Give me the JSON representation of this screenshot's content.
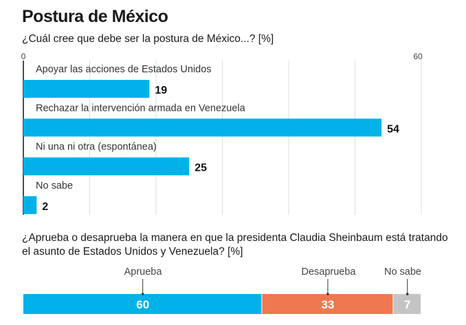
{
  "title": "Postura de México",
  "chart_data": [
    {
      "type": "bar",
      "orientation": "horizontal",
      "title": "¿Cuál cree que debe ser la postura de México...? [%]",
      "categories": [
        "Apoyar las acciones de Estados Unidos",
        "Rechazar la intervención armada en Venezuela",
        "Ni una ni otra (espontánea)",
        "No sabe"
      ],
      "values": [
        19,
        54,
        25,
        2
      ],
      "xlim": [
        0,
        60
      ],
      "tick_labels": [
        "0",
        "60"
      ],
      "gridlines": [
        10,
        20,
        30,
        40,
        50,
        60
      ],
      "grid": true,
      "color": "#00b2e8"
    },
    {
      "type": "bar",
      "stacked": true,
      "title": "¿Aprueba o desaprueba la manera en que la presidenta Claudia Sheinbaum está tratando el asunto de Estados Unidos y Venezuela? [%]",
      "series": [
        {
          "name": "Aprueba",
          "value": 60,
          "color": "#00b2e8"
        },
        {
          "name": "Desaprueba",
          "value": 33,
          "color": "#f07850"
        },
        {
          "name": "No sabe",
          "value": 7,
          "color": "#c4c4c4"
        }
      ]
    }
  ]
}
